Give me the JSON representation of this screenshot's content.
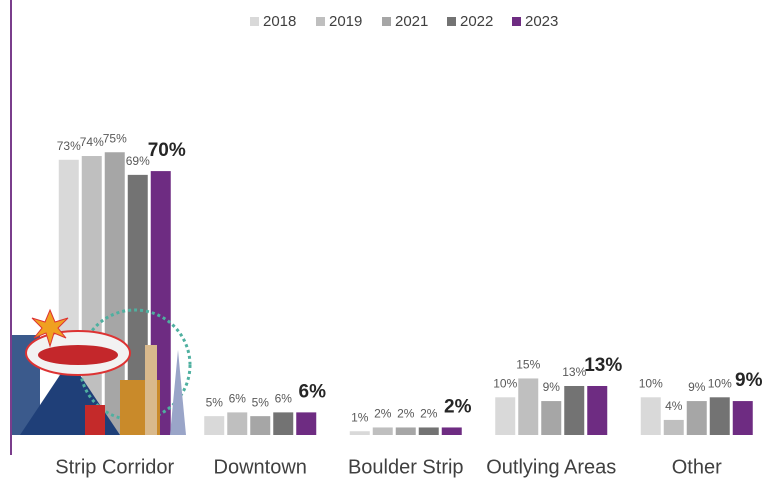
{
  "chart_data": {
    "type": "bar",
    "categories": [
      "Strip Corridor",
      "Downtown",
      "Boulder Strip",
      "Outlying Areas",
      "Other"
    ],
    "legend": "top",
    "series": [
      {
        "name": "2018",
        "color": "#d9d9d9",
        "values": [
          73,
          5,
          1,
          10,
          10
        ],
        "value_labels": [
          "73%",
          "5%",
          "1%",
          "10%",
          "10%"
        ]
      },
      {
        "name": "2019",
        "color": "#bfbfbf",
        "values": [
          74,
          6,
          2,
          15,
          4
        ],
        "value_labels": [
          "74%",
          "6%",
          "2%",
          "15%",
          "4%"
        ]
      },
      {
        "name": "2021",
        "color": "#a6a6a6",
        "values": [
          75,
          5,
          2,
          9,
          9
        ],
        "value_labels": [
          "75%",
          "5%",
          "2%",
          "9%",
          "9%"
        ]
      },
      {
        "name": "2022",
        "color": "#737373",
        "values": [
          69,
          6,
          2,
          13,
          10
        ],
        "value_labels": [
          "69%",
          "6%",
          "2%",
          "13%",
          "10%"
        ]
      },
      {
        "name": "2023",
        "color": "#6e2c82",
        "values": [
          70,
          6,
          2,
          13,
          9
        ],
        "value_labels": [
          "70%",
          "6%",
          "2%",
          "13%",
          "9%"
        ]
      }
    ]
  }
}
